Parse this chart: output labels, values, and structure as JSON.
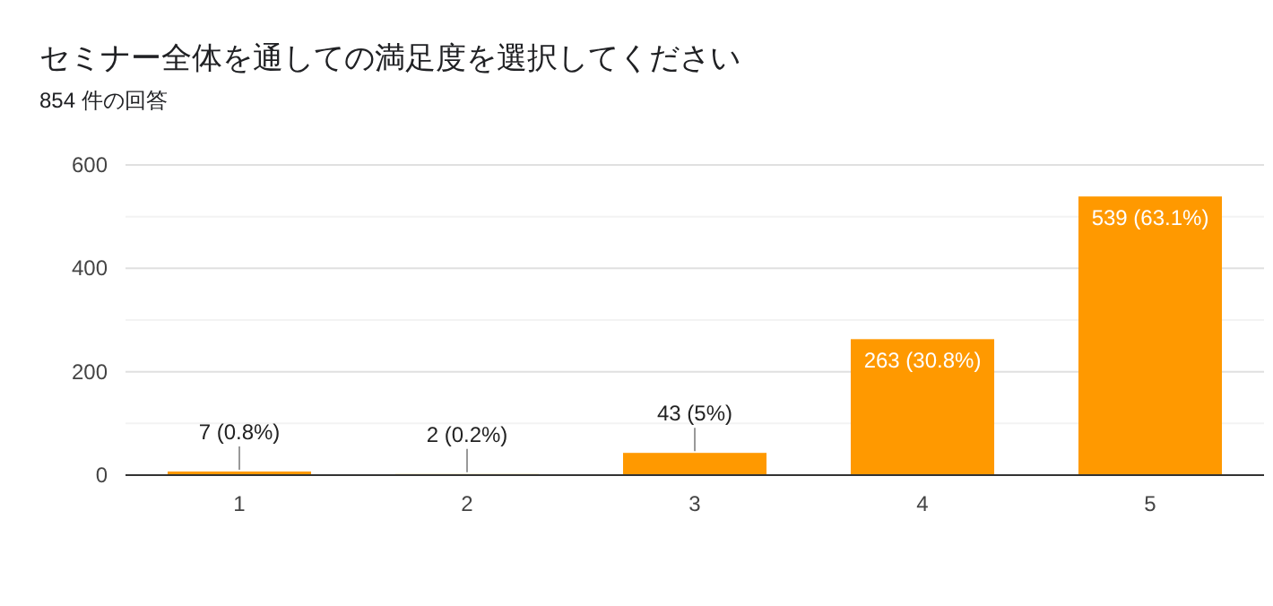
{
  "chart_data": {
    "type": "bar",
    "title": "セミナー全体を通しての満足度を選択してください",
    "subtitle": "854 件の回答",
    "categories": [
      "1",
      "2",
      "3",
      "4",
      "5"
    ],
    "values": [
      7,
      2,
      43,
      263,
      539
    ],
    "value_labels": [
      "7 (0.8%)",
      "2 (0.2%)",
      "43 (5%)",
      "263 (30.8%)",
      "539 (63.1%)"
    ],
    "color": "#ff9900",
    "ylim": [
      0,
      600
    ],
    "yticks": [
      0,
      {
        "value": 100,
        "label": null
      },
      200,
      {
        "value": 300,
        "label": null
      },
      400,
      {
        "value": 500,
        "label": null
      },
      600
    ],
    "grid": "y"
  }
}
